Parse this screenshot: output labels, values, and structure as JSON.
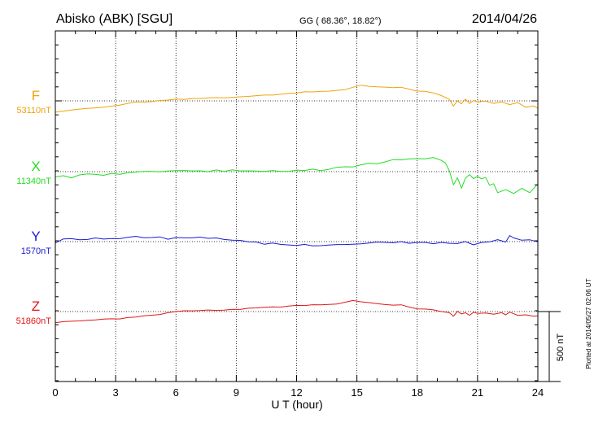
{
  "header": {
    "station": "Abisko (ABK)  [SGU]",
    "coords": "GG ( 68.36°,  18.82°)",
    "date": "2014/04/26"
  },
  "footer": {
    "plotted": "Plotted at 2014/05/27 02:06 UT"
  },
  "chart_data": {
    "type": "line",
    "xlabel": "U T (hour)",
    "xlim": [
      0,
      24
    ],
    "xticks": [
      "0",
      "3",
      "6",
      "9",
      "12",
      "15",
      "18",
      "21",
      "24"
    ],
    "scale_bar_label": "500 nT",
    "scale_bar_nT": 500,
    "grid": true,
    "series": [
      {
        "name": "F",
        "baseline_label": "53110nT",
        "baseline_nT": 53110,
        "color": "#f0a30a",
        "x": [
          0,
          0.4,
          0.8,
          1.2,
          1.6,
          2.0,
          2.4,
          2.8,
          3.2,
          3.6,
          4.0,
          4.4,
          4.8,
          5.2,
          5.6,
          6.0,
          6.4,
          6.8,
          7.2,
          7.6,
          8.0,
          8.4,
          8.8,
          9.2,
          9.6,
          10.0,
          10.4,
          10.8,
          11.2,
          11.6,
          12.0,
          12.4,
          12.8,
          13.2,
          13.6,
          14.0,
          14.4,
          14.8,
          15.2,
          15.6,
          16.0,
          16.4,
          16.8,
          17.2,
          17.6,
          18.0,
          18.4,
          18.8,
          19.2,
          19.6,
          19.8,
          20.0,
          20.2,
          20.4,
          20.6,
          20.8,
          21.0,
          21.4,
          21.8,
          22.2,
          22.6,
          23.0,
          23.4,
          23.8,
          24.0
        ],
        "y": [
          53029,
          53037,
          53045,
          53051,
          53056,
          53060,
          53065,
          53072,
          53079,
          53092,
          53103,
          53101,
          53105,
          53113,
          53116,
          53123,
          53120,
          53127,
          53127,
          53131,
          53133,
          53131,
          53135,
          53139,
          53142,
          53147,
          53151,
          53151,
          53157,
          53163,
          53166,
          53175,
          53174,
          53178,
          53179,
          53185,
          53190,
          53207,
          53222,
          53214,
          53210,
          53208,
          53205,
          53207,
          53194,
          53180,
          53178,
          53167,
          53148,
          53121,
          53072,
          53111,
          53089,
          53123,
          53091,
          53113,
          53101,
          53108,
          53092,
          53103,
          53083,
          53098,
          53064,
          53074,
          53056
        ]
      },
      {
        "name": "X",
        "baseline_label": "11340nT",
        "baseline_nT": 11340,
        "color": "#22dd22",
        "x": [
          0,
          0.4,
          0.8,
          1.2,
          1.6,
          2.0,
          2.4,
          2.8,
          3.2,
          3.6,
          4.0,
          4.4,
          4.8,
          5.2,
          5.6,
          6.0,
          6.4,
          6.8,
          7.2,
          7.6,
          8.0,
          8.4,
          8.8,
          9.2,
          9.6,
          10.0,
          10.4,
          10.8,
          11.2,
          11.6,
          12.0,
          12.4,
          12.8,
          13.2,
          13.6,
          14.0,
          14.4,
          14.8,
          15.2,
          15.6,
          16.0,
          16.4,
          16.8,
          17.2,
          17.6,
          18.0,
          18.4,
          18.8,
          19.2,
          19.4,
          19.6,
          19.8,
          20.0,
          20.2,
          20.4,
          20.6,
          20.8,
          21.0,
          21.2,
          21.4,
          21.6,
          21.8,
          22.0,
          22.4,
          22.8,
          23.2,
          23.6,
          24.0
        ],
        "y": [
          11302,
          11311,
          11296,
          11317,
          11324,
          11320,
          11314,
          11328,
          11320,
          11332,
          11337,
          11341,
          11341,
          11339,
          11345,
          11347,
          11348,
          11345,
          11346,
          11340,
          11352,
          11342,
          11353,
          11345,
          11346,
          11344,
          11341,
          11348,
          11342,
          11342,
          11351,
          11348,
          11358,
          11347,
          11356,
          11371,
          11375,
          11374,
          11389,
          11400,
          11396,
          11410,
          11426,
          11424,
          11432,
          11433,
          11431,
          11441,
          11420,
          11402,
          11346,
          11246,
          11297,
          11221,
          11293,
          11319,
          11290,
          11307,
          11289,
          11298,
          11243,
          11254,
          11190,
          11211,
          11184,
          11221,
          11190,
          11252
        ]
      },
      {
        "name": "Y",
        "baseline_label": "1570nT",
        "baseline_nT": 1570,
        "color": "#1a1ad6",
        "x": [
          0,
          0.4,
          0.8,
          1.2,
          1.6,
          2.0,
          2.4,
          2.8,
          3.2,
          3.6,
          4.0,
          4.4,
          4.8,
          5.2,
          5.6,
          6.0,
          6.4,
          6.8,
          7.2,
          7.6,
          8.0,
          8.4,
          8.8,
          9.2,
          9.6,
          10.0,
          10.4,
          10.8,
          11.2,
          11.6,
          12.0,
          12.4,
          12.8,
          13.2,
          13.6,
          14.0,
          14.4,
          14.8,
          15.2,
          15.6,
          16.0,
          16.4,
          16.8,
          17.2,
          17.6,
          18.0,
          18.4,
          18.8,
          19.2,
          19.6,
          20.0,
          20.4,
          20.8,
          21.2,
          21.6,
          22.0,
          22.4,
          22.6,
          22.8,
          23.2,
          23.6,
          24.0
        ],
        "y": [
          1560,
          1589,
          1591,
          1583,
          1585,
          1596,
          1588,
          1592,
          1591,
          1600,
          1608,
          1598,
          1599,
          1604,
          1587,
          1599,
          1597,
          1597,
          1602,
          1593,
          1596,
          1585,
          1580,
          1579,
          1568,
          1567,
          1551,
          1560,
          1550,
          1546,
          1542,
          1550,
          1539,
          1541,
          1545,
          1549,
          1549,
          1551,
          1554,
          1560,
          1567,
          1565,
          1561,
          1570,
          1558,
          1564,
          1564,
          1555,
          1564,
          1558,
          1556,
          1570,
          1547,
          1564,
          1568,
          1584,
          1567,
          1613,
          1596,
          1580,
          1583,
          1569
        ]
      },
      {
        "name": "Z",
        "baseline_label": "51860nT",
        "baseline_nT": 51860,
        "color": "#e01818",
        "x": [
          0,
          0.4,
          0.8,
          1.2,
          1.6,
          2.0,
          2.4,
          2.8,
          3.2,
          3.6,
          4.0,
          4.4,
          4.8,
          5.2,
          5.6,
          6.0,
          6.4,
          6.8,
          7.2,
          7.6,
          8.0,
          8.4,
          8.8,
          9.2,
          9.6,
          10.0,
          10.4,
          10.8,
          11.2,
          11.6,
          12.0,
          12.4,
          12.8,
          13.2,
          13.6,
          14.0,
          14.4,
          14.8,
          15.2,
          15.6,
          16.0,
          16.4,
          16.8,
          17.2,
          17.6,
          18.0,
          18.4,
          18.8,
          19.2,
          19.6,
          19.8,
          20.0,
          20.2,
          20.4,
          20.6,
          20.8,
          21.0,
          21.4,
          21.8,
          22.2,
          22.4,
          22.6,
          23.0,
          23.4,
          23.8,
          24.0
        ],
        "y": [
          51780,
          51788,
          51791,
          51793,
          51797,
          51800,
          51806,
          51808,
          51807,
          51817,
          51821,
          51830,
          51834,
          51839,
          51852,
          51860,
          51866,
          51865,
          51867,
          51871,
          51868,
          51870,
          51876,
          51875,
          51884,
          51886,
          51891,
          51893,
          51892,
          51899,
          51904,
          51903,
          51909,
          51908,
          51911,
          51914,
          51926,
          51939,
          51930,
          51924,
          51917,
          51910,
          51906,
          51908,
          51892,
          51879,
          51878,
          51872,
          51860,
          51852,
          51826,
          51862,
          51843,
          51851,
          51833,
          51855,
          51847,
          51850,
          51841,
          51852,
          51837,
          51856,
          51833,
          51837,
          51826,
          51830
        ]
      }
    ]
  }
}
